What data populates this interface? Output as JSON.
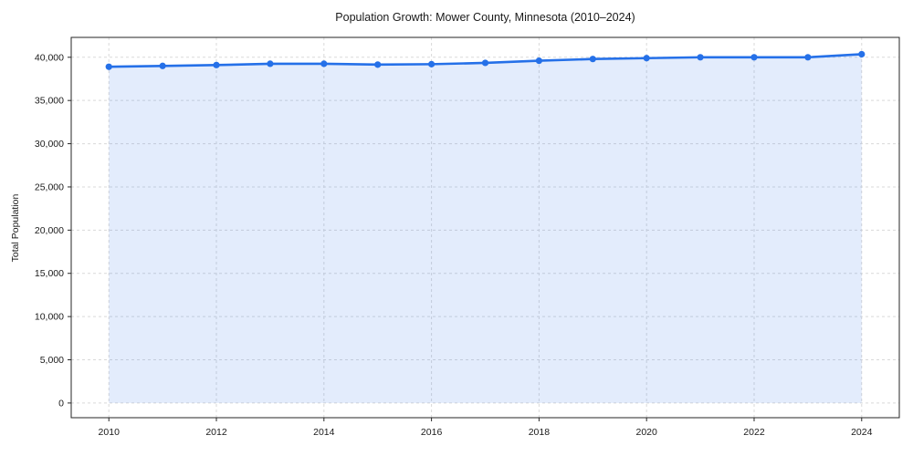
{
  "chart_data": {
    "type": "line",
    "title": "Population Growth: Mower County, Minnesota (2010–2024)",
    "xlabel": "",
    "ylabel": "Total Population",
    "x": [
      2010,
      2011,
      2012,
      2013,
      2014,
      2015,
      2016,
      2017,
      2018,
      2019,
      2020,
      2021,
      2022,
      2023,
      2024
    ],
    "series": [
      {
        "name": "Total Population",
        "values": [
          38900,
          39000,
          39100,
          39250,
          39250,
          39150,
          39200,
          39350,
          39600,
          39800,
          39900,
          40000,
          40000,
          40000,
          40350
        ]
      }
    ],
    "area_fill": true,
    "markers": true,
    "grid": true,
    "grid_style": "dashed",
    "legend": "none",
    "xlim": [
      2009.3,
      2024.7
    ],
    "ylim": [
      -1700,
      42300
    ],
    "baseline": 0,
    "xticks": [
      2010,
      2012,
      2014,
      2016,
      2018,
      2020,
      2022,
      2024
    ],
    "xtick_labels": [
      "2010",
      "2012",
      "2014",
      "2016",
      "2018",
      "2020",
      "2022",
      "2024"
    ],
    "yticks": [
      0,
      5000,
      10000,
      15000,
      20000,
      25000,
      30000,
      35000,
      40000
    ],
    "ytick_labels": [
      "0",
      "5,000",
      "10,000",
      "15,000",
      "20,000",
      "25,000",
      "30,000",
      "35,000",
      "40,000"
    ],
    "colors": {
      "line": "#2570e8",
      "marker": "#2570e8",
      "fill": "#2570e8",
      "fill_opacity": 0.13,
      "grid": "#d9d9d9",
      "spine": "#262626",
      "text": "#1a1a1a"
    }
  }
}
